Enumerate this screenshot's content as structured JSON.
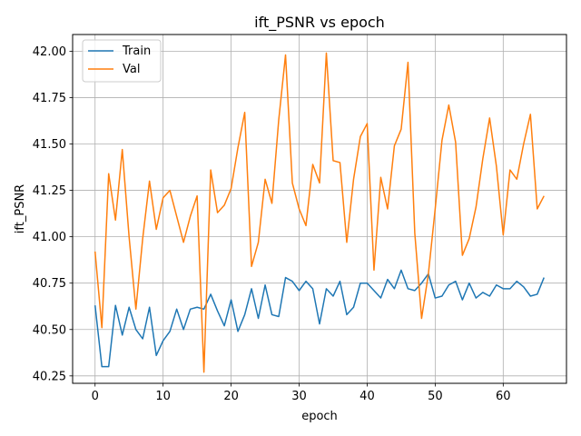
{
  "chart_data": {
    "type": "line",
    "title": "ift_PSNR vs epoch",
    "xlabel": "epoch",
    "ylabel": "ift_PSNR",
    "xlim": [
      -3.3,
      69.3
    ],
    "ylim": [
      40.21,
      42.09
    ],
    "xticks": [
      0,
      10,
      20,
      30,
      40,
      50,
      60
    ],
    "yticks": [
      40.25,
      40.5,
      40.75,
      41.0,
      41.25,
      41.5,
      41.75,
      42.0
    ],
    "ytick_labels": [
      "40.25",
      "40.50",
      "40.75",
      "41.00",
      "41.25",
      "41.50",
      "41.75",
      "42.00"
    ],
    "grid": true,
    "legend_position": "top-left",
    "x": [
      0,
      1,
      2,
      3,
      4,
      5,
      6,
      7,
      8,
      9,
      10,
      11,
      12,
      13,
      14,
      15,
      16,
      17,
      18,
      19,
      20,
      21,
      22,
      23,
      24,
      25,
      26,
      27,
      28,
      29,
      30,
      31,
      32,
      33,
      34,
      35,
      36,
      37,
      38,
      39,
      40,
      41,
      42,
      43,
      44,
      45,
      46,
      47,
      48,
      49,
      50,
      51,
      52,
      53,
      54,
      55,
      56,
      57,
      58,
      59,
      60,
      61,
      62,
      63,
      64,
      65,
      66
    ],
    "series": [
      {
        "name": "Train",
        "color": "#1f77b4",
        "values": [
          40.63,
          40.3,
          40.3,
          40.63,
          40.47,
          40.62,
          40.5,
          40.45,
          40.62,
          40.36,
          40.44,
          40.49,
          40.61,
          40.5,
          40.61,
          40.62,
          40.61,
          40.69,
          40.6,
          40.52,
          40.66,
          40.49,
          40.58,
          40.72,
          40.56,
          40.74,
          40.58,
          40.57,
          40.78,
          40.76,
          40.71,
          40.76,
          40.72,
          40.53,
          40.72,
          40.68,
          40.76,
          40.58,
          40.62,
          40.75,
          40.75,
          40.71,
          40.67,
          40.77,
          40.72,
          40.82,
          40.72,
          40.71,
          40.75,
          40.8,
          40.67,
          40.68,
          40.74,
          40.76,
          40.66,
          40.75,
          40.67,
          40.7,
          40.68,
          40.74,
          40.72,
          40.72,
          40.76,
          40.73,
          40.68,
          40.69,
          40.78
        ]
      },
      {
        "name": "Val",
        "color": "#ff7f0e",
        "values": [
          40.92,
          40.51,
          41.34,
          41.09,
          41.47,
          41.0,
          40.61,
          40.99,
          41.3,
          41.04,
          41.21,
          41.25,
          41.11,
          40.97,
          41.11,
          41.22,
          40.27,
          41.36,
          41.13,
          41.17,
          41.26,
          41.48,
          41.67,
          40.84,
          40.97,
          41.31,
          41.18,
          41.63,
          41.98,
          41.29,
          41.15,
          41.06,
          41.39,
          41.29,
          41.99,
          41.41,
          41.4,
          40.97,
          41.31,
          41.54,
          41.61,
          40.82,
          41.32,
          41.15,
          41.49,
          41.58,
          41.94,
          41.02,
          40.56,
          40.8,
          41.15,
          41.52,
          41.71,
          41.51,
          40.9,
          40.99,
          41.16,
          41.42,
          41.64,
          41.38,
          41.01,
          41.36,
          41.31,
          41.5,
          41.66,
          41.15,
          41.22
        ]
      }
    ]
  }
}
